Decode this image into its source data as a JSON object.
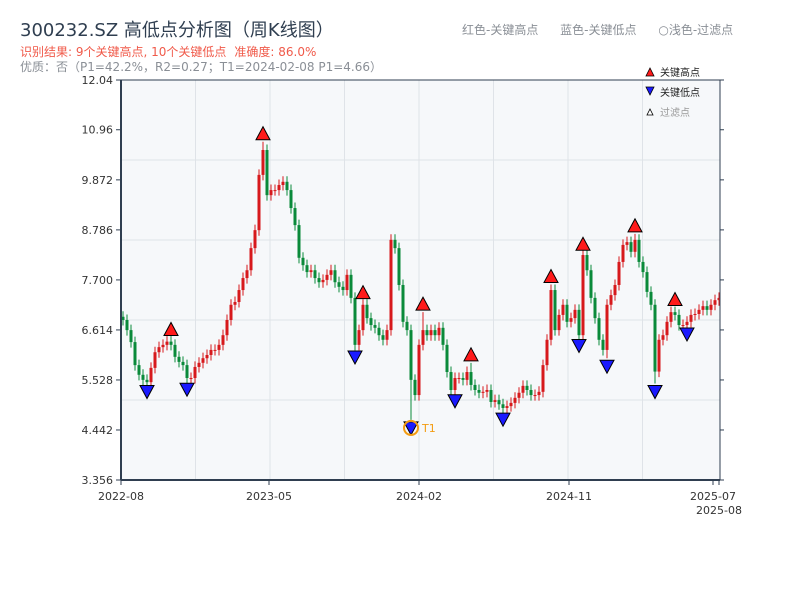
{
  "header": {
    "title": "300232.SZ 高低点分析图（周K线图）",
    "result_label": "识别结果: 9个关键高点, 10个关键低点",
    "accuracy_label": "准确度: 86.0%",
    "quality_line": "优质：否（P1=42.2%，R2=0.27；T1=2024-02-08 P1=4.66）",
    "legend_red": "红色-关键高点",
    "legend_blue": "蓝色-关键低点",
    "legend_light": "○浅色-过滤点"
  },
  "colors": {
    "up": "#d7191c",
    "down": "#0a8a3a",
    "high_marker": "#ff1a1a",
    "low_marker": "#1a1aff",
    "t1": "#f39c12",
    "axis": "#2f3e50",
    "plot_bg": "#f6f8fa"
  },
  "chart_data": {
    "type": "candlestick",
    "title": "300232.SZ 高低点分析图（周K线图）",
    "period": "weekly",
    "ylim": [
      3.356,
      12.04
    ],
    "yticks": [
      "3.356",
      "4.442",
      "5.528",
      "6.614",
      "7.700",
      "8.786",
      "9.872",
      "10.96",
      "12.04"
    ],
    "xticks": [
      {
        "index": 0,
        "label": "2022-08"
      },
      {
        "index": 37,
        "label": "2023-05"
      },
      {
        "index": 74.5,
        "label": "2024-02"
      },
      {
        "index": 112,
        "label": "2024-11"
      },
      {
        "index": 148,
        "label": "2025-07"
      },
      {
        "index": 149.5,
        "label": "2025-08"
      }
    ],
    "first_open": 6.9,
    "closes": [
      6.83,
      6.61,
      6.35,
      5.85,
      5.64,
      5.53,
      5.48,
      5.79,
      6.13,
      6.24,
      6.29,
      6.36,
      6.29,
      6.03,
      5.92,
      5.85,
      5.57,
      5.57,
      5.81,
      5.9,
      6.0,
      6.07,
      6.18,
      6.18,
      6.29,
      6.5,
      6.83,
      7.16,
      7.22,
      7.48,
      7.74,
      7.91,
      8.39,
      8.78,
      9.98,
      10.52,
      9.54,
      9.65,
      9.65,
      9.76,
      9.83,
      9.65,
      9.26,
      8.89,
      8.18,
      8.02,
      7.87,
      7.91,
      7.74,
      7.65,
      7.7,
      7.81,
      7.91,
      7.65,
      7.55,
      7.48,
      7.81,
      7.31,
      6.29,
      6.61,
      7.16,
      6.87,
      6.72,
      6.66,
      6.5,
      6.4,
      6.61,
      8.57,
      8.39,
      7.59,
      6.79,
      6.61,
      5.53,
      5.2,
      6.29,
      6.61,
      6.5,
      6.61,
      6.5,
      6.66,
      6.29,
      5.7,
      5.31,
      5.57,
      5.57,
      5.53,
      5.7,
      5.42,
      5.31,
      5.25,
      5.27,
      5.31,
      5.05,
      5.09,
      5.0,
      4.92,
      4.96,
      5.03,
      5.14,
      5.25,
      5.4,
      5.31,
      5.2,
      5.2,
      5.27,
      5.85,
      6.4,
      7.48,
      6.61,
      6.94,
      7.16,
      6.79,
      6.87,
      7.05,
      6.5,
      8.24,
      7.91,
      7.31,
      6.87,
      6.4,
      6.18,
      7.16,
      7.37,
      7.59,
      8.09,
      8.46,
      8.52,
      8.31,
      8.57,
      8.09,
      7.87,
      7.44,
      7.16,
      5.71,
      6.4,
      6.5,
      6.79,
      7.0,
      6.94,
      6.72,
      6.72,
      6.79,
      6.94,
      6.96,
      7.05,
      7.13,
      7.05,
      7.16,
      7.26,
      7.31
    ],
    "key_highs": [
      {
        "index": 12,
        "price": 6.45
      },
      {
        "index": 35,
        "price": 10.7
      },
      {
        "index": 60,
        "price": 7.25
      },
      {
        "index": 75,
        "price": 7.0
      },
      {
        "index": 87,
        "price": 5.9
      },
      {
        "index": 107,
        "price": 7.6
      },
      {
        "index": 115,
        "price": 8.3
      },
      {
        "index": 128,
        "price": 8.7
      },
      {
        "index": 138,
        "price": 7.1
      }
    ],
    "key_lows": [
      {
        "index": 6,
        "price": 5.45
      },
      {
        "index": 16,
        "price": 5.5
      },
      {
        "index": 58,
        "price": 6.2
      },
      {
        "index": 72,
        "price": 4.66
      },
      {
        "index": 83,
        "price": 5.25
      },
      {
        "index": 95,
        "price": 4.85
      },
      {
        "index": 114,
        "price": 6.45
      },
      {
        "index": 121,
        "price": 6.0
      },
      {
        "index": 133,
        "price": 5.45
      },
      {
        "index": 141,
        "price": 6.7
      }
    ],
    "t1": {
      "index": 72,
      "price": 4.66,
      "label": "T1"
    },
    "legend": {
      "position": "top-right",
      "entries": [
        "关键高点",
        "关键低点",
        "过滤点"
      ]
    }
  }
}
